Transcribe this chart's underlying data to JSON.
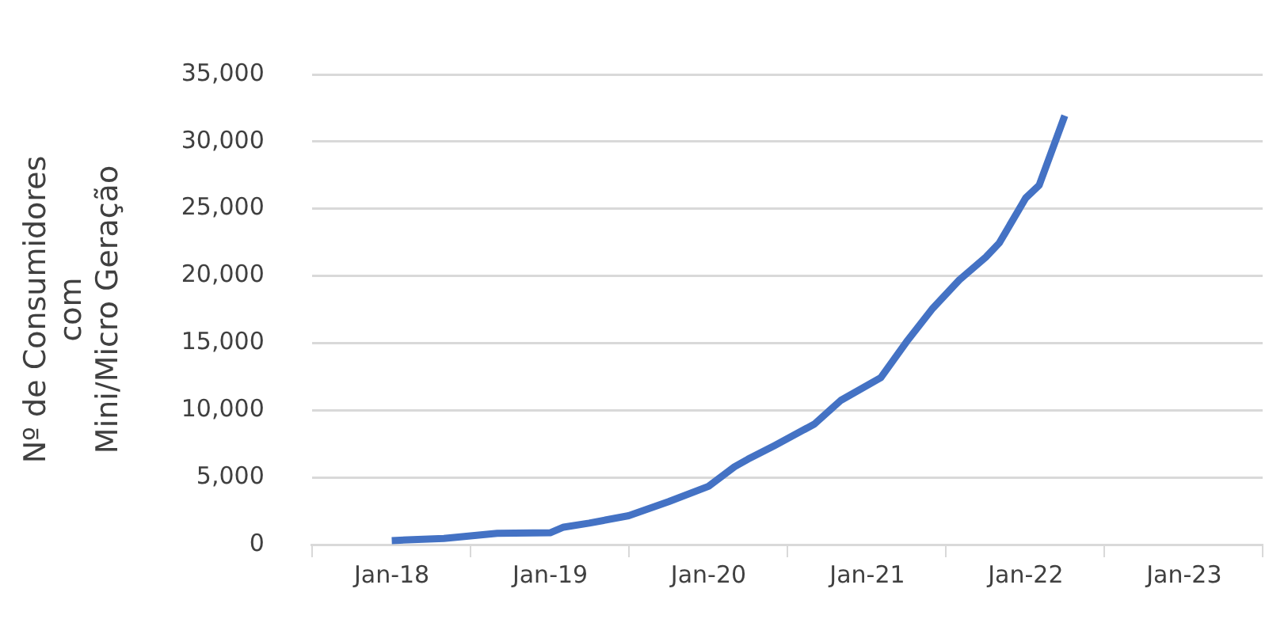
{
  "chart_data": {
    "type": "line",
    "ylabel": "Nº de Consumidores\ncom\nMini/Micro Geração",
    "x": [
      "2018-01",
      "2018-05",
      "2018-09",
      "2019-01",
      "2019-02",
      "2019-04",
      "2019-07",
      "2019-10",
      "2020-01",
      "2020-03",
      "2020-04",
      "2020-06",
      "2020-09",
      "2020-11",
      "2021-02",
      "2021-04",
      "2021-06",
      "2021-08",
      "2021-10",
      "2021-11",
      "2022-01",
      "2022-02",
      "2022-04"
    ],
    "series": [
      {
        "color": "#4472c4",
        "values": [
          300,
          460,
          840,
          880,
          1300,
          1600,
          2150,
          3200,
          4340,
          5800,
          6360,
          7370,
          8970,
          10740,
          12430,
          15080,
          17600,
          19700,
          21400,
          22450,
          25800,
          26750,
          31930
        ]
      }
    ],
    "xlim": [
      "2017-07",
      "2023-07"
    ],
    "xticks": [
      {
        "value": "2017-07",
        "label": null
      },
      {
        "value": "2018-01",
        "label": "Jan-18"
      },
      {
        "value": "2018-07",
        "label": null
      },
      {
        "value": "2019-01",
        "label": "Jan-19"
      },
      {
        "value": "2019-07",
        "label": null
      },
      {
        "value": "2020-01",
        "label": "Jan-20"
      },
      {
        "value": "2020-07",
        "label": null
      },
      {
        "value": "2021-01",
        "label": "Jan-21"
      },
      {
        "value": "2021-07",
        "label": null
      },
      {
        "value": "2022-01",
        "label": "Jan-22"
      },
      {
        "value": "2022-07",
        "label": null
      },
      {
        "value": "2023-01",
        "label": "Jan-23"
      },
      {
        "value": "2023-07",
        "label": null
      }
    ],
    "ylim": [
      0,
      35000
    ],
    "yticks": [
      0,
      {
        "value": 5000,
        "label": "5,000"
      },
      {
        "value": 10000,
        "label": "10,000"
      },
      {
        "value": 15000,
        "label": "15,000"
      },
      {
        "value": 20000,
        "label": "20,000"
      },
      {
        "value": 25000,
        "label": "25,000"
      },
      {
        "value": 30000,
        "label": "30,000"
      },
      {
        "value": 35000,
        "label": "35,000"
      }
    ],
    "grid": "y",
    "legend": false,
    "marker": "none",
    "line_style": "solid"
  }
}
